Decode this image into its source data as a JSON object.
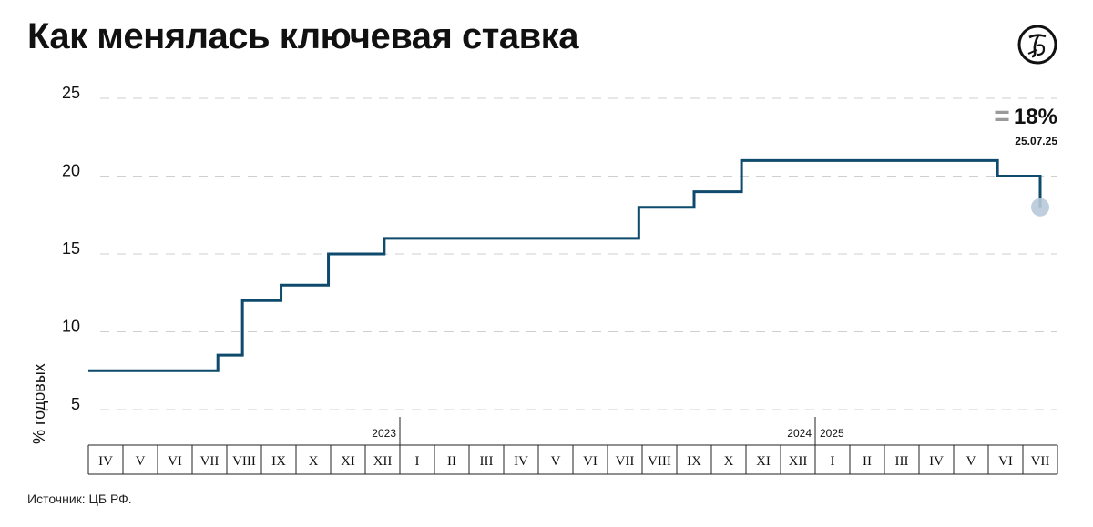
{
  "title": "Как менялась ключевая ставка",
  "source": "Источник: ЦБ РФ.",
  "logo_icon": "the-bell-logo-icon",
  "chart_data": {
    "type": "line",
    "step": true,
    "title": "Как менялась ключевая ставка",
    "ylabel": "% годовых",
    "xlabel": "",
    "ylim": [
      5,
      25
    ],
    "yticks": [
      5,
      10,
      15,
      20,
      25
    ],
    "grid": true,
    "line_color": "#0e4a6b",
    "point_color": "#b7c9d8",
    "months": [
      "IV",
      "V",
      "VI",
      "VII",
      "VIII",
      "IX",
      "X",
      "XI",
      "XII",
      "I",
      "II",
      "III",
      "IV",
      "V",
      "VI",
      "VII",
      "VIII",
      "IX",
      "X",
      "XI",
      "XII",
      "I",
      "II",
      "III",
      "IV",
      "V",
      "VI",
      "VII"
    ],
    "years": [
      {
        "label": "2023",
        "after_month_index": 8
      },
      {
        "label": "2024",
        "after_month_index": 20
      },
      {
        "label": "2025",
        "after_month_index": 20
      }
    ],
    "series": [
      {
        "points": [
          {
            "x": "2023-04-01",
            "y": 7.5
          },
          {
            "x": "2023-07-24",
            "y": 8.5
          },
          {
            "x": "2023-08-15",
            "y": 12
          },
          {
            "x": "2023-09-18",
            "y": 13
          },
          {
            "x": "2023-10-30",
            "y": 15
          },
          {
            "x": "2023-12-18",
            "y": 16
          },
          {
            "x": "2024-07-29",
            "y": 18
          },
          {
            "x": "2024-09-16",
            "y": 19
          },
          {
            "x": "2024-10-28",
            "y": 21
          },
          {
            "x": "2025-06-09",
            "y": 20
          },
          {
            "x": "2025-07-28",
            "y": 18
          }
        ]
      }
    ],
    "annotation": {
      "symbol": "=",
      "value_label": "18%",
      "date_label": "25.07.25"
    }
  }
}
